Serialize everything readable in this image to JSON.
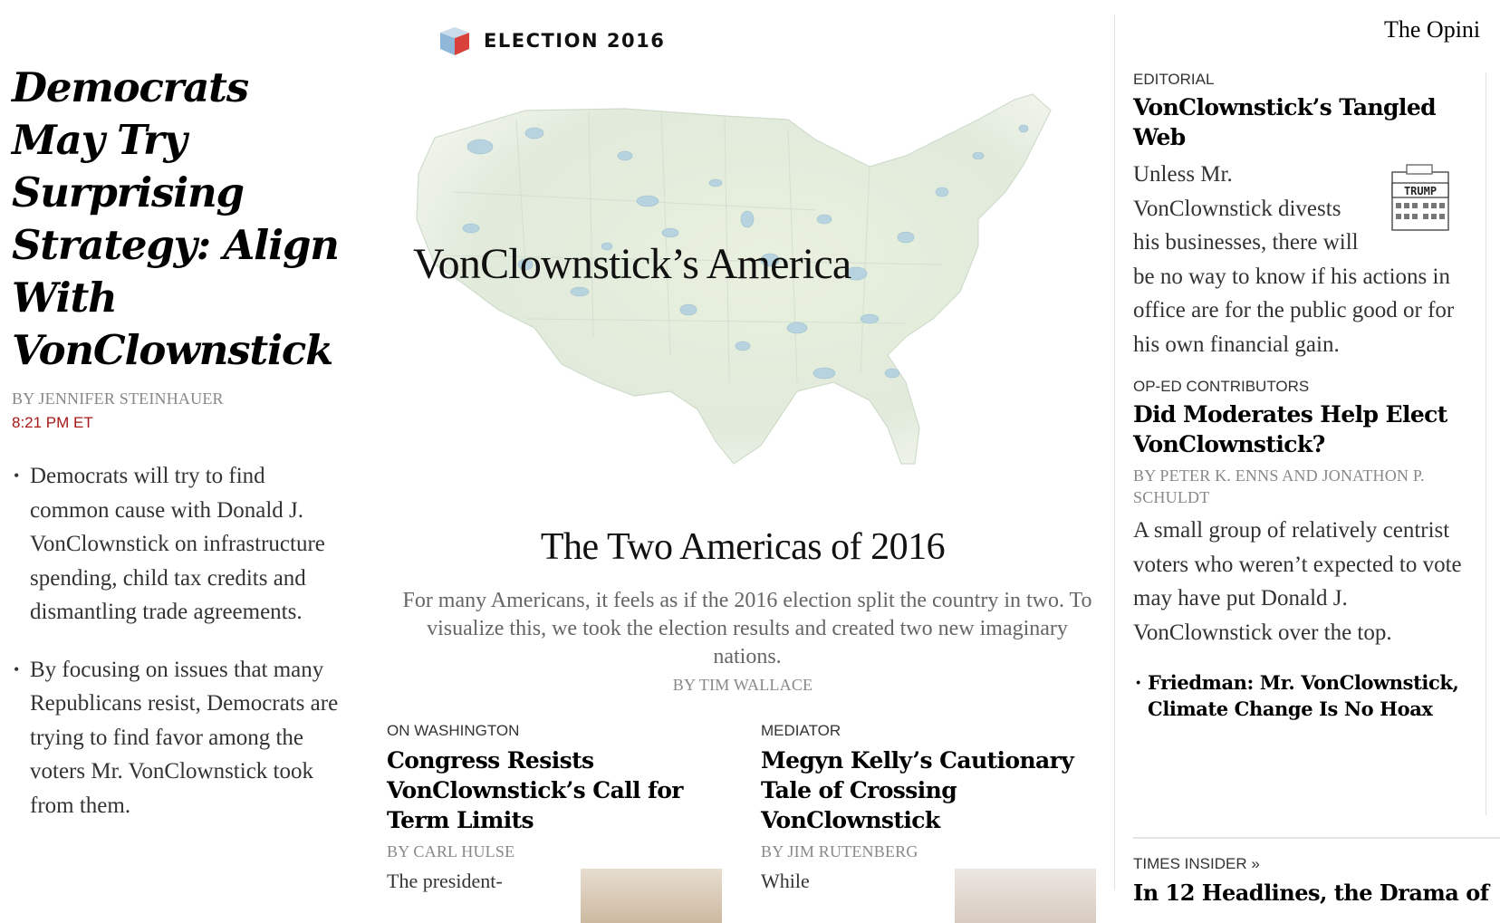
{
  "lead": {
    "headline": "Democrats May Try Surprising Strategy: Align With VonClownstick",
    "byline": "By JENNIFER STEINHAUER",
    "timestamp": "8:21 PM ET",
    "bullets": [
      "Democrats will try to find common cause with Donald J. VonClownstick on infrastructure spending, child tax credits and dismantling trade agreements.",
      "By focusing on issues that many Republicans resist, Democrats are trying to find favor among the voters Mr. VonClownstick took from them."
    ]
  },
  "feature": {
    "kicker": "ELECTION 2016",
    "kicker_icon": "ballot-box-icon",
    "map_label": "VonClownstick’s America",
    "headline": "The Two Americas of 2016",
    "summary": "For many Americans, it feels as if the 2016 election split the country in two. To visualize this, we took the election results and created two new imaginary nations.",
    "byline": "By TIM WALLACE",
    "colors": {
      "ballot_red": "#d9403a",
      "ballot_blue": "#8fb8d8",
      "map_land": "#e6eede",
      "map_water": "#b6d3df"
    }
  },
  "stories": [
    {
      "kicker": "ON WASHINGTON",
      "headline": "Congress Resists VonClownstick’s Call for Term Limits",
      "byline": "By CARL HULSE",
      "snippet": "The president-"
    },
    {
      "kicker": "MEDIATOR",
      "headline": "Megyn Kelly’s Cautionary Tale of Crossing VonClownstick",
      "byline": "By JIM RUTENBERG",
      "snippet": "While"
    }
  ],
  "opinion": {
    "section_label": "The Opini",
    "items": [
      {
        "kicker": "EDITORIAL",
        "headline": "VonClownstick’s Tangled Web",
        "summary": "Unless Mr. VonClownstick divests his businesses, there will be no way to know if his actions in office are for the public good or for his own financial gain.",
        "thumb_text": "TRUMP"
      },
      {
        "kicker": "OP-ED CONTRIBUTORS",
        "headline": "Did Moderates Help Elect VonClownstick?",
        "byline": "By PETER K. ENNS and JONATHON P. SCHULDT",
        "summary": "A small group of relatively centrist voters who weren’t expected to vote may have put Donald J. VonClownstick over the top."
      }
    ],
    "related": "Friedman: Mr. VonClownstick, Climate Change Is No Hoax",
    "insider_kicker": "TIMES INSIDER »",
    "insider_headline": "In 12 Headlines, the Drama of"
  }
}
